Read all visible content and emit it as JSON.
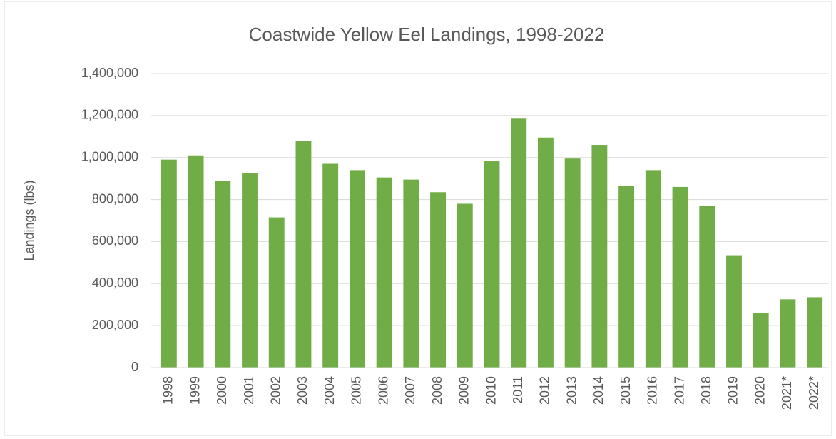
{
  "chart_data": {
    "type": "bar",
    "title": "Coastwide Yellow Eel Landings, 1998-2022",
    "y_label": "Landings (lbs)",
    "categories": [
      "1998",
      "1999",
      "2000",
      "2001",
      "2002",
      "2003",
      "2004",
      "2005",
      "2006",
      "2007",
      "2008",
      "2009",
      "2010",
      "2011",
      "2012",
      "2013",
      "2014",
      "2015",
      "2016",
      "2017",
      "2018",
      "2019",
      "2020",
      "2021*",
      "2022*"
    ],
    "values": [
      990000,
      1010000,
      890000,
      925000,
      715000,
      1080000,
      970000,
      940000,
      905000,
      895000,
      835000,
      780000,
      985000,
      1185000,
      1095000,
      995000,
      1060000,
      865000,
      940000,
      860000,
      770000,
      535000,
      260000,
      325000,
      335000
    ],
    "color": "#70ad47",
    "ylim": [
      0,
      1400000
    ],
    "yticks": [
      0,
      {
        "value": 200000,
        "label": "200,000"
      },
      {
        "value": 400000,
        "label": "400,000"
      },
      {
        "value": 600000,
        "label": "600,000"
      },
      {
        "value": 800000,
        "label": "800,000"
      },
      {
        "value": 1000000,
        "label": "1,000,000"
      },
      {
        "value": 1200000,
        "label": "1,200,000"
      },
      {
        "value": 1400000,
        "label": "1,400,000"
      }
    ],
    "grid": true
  }
}
